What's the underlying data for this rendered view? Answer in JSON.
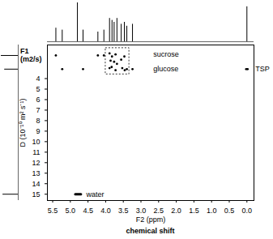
{
  "chart_data": {
    "type": "scatter",
    "x_label": "F2 (ppm)",
    "x_label_2": "chemical shift",
    "y_label": "D (10⁻¹⁰ m² s⁻¹)",
    "y_unit_label": [
      "F1",
      "(m2/s)"
    ],
    "xlim": [
      5.65,
      -0.2
    ],
    "xticks": [
      5.5,
      {
        "value": 5,
        "label": "5.0"
      },
      4.5,
      {
        "value": 4,
        "label": "4.0"
      },
      3.5,
      {
        "value": 3,
        "label": "3.0"
      },
      2.5,
      {
        "value": 2,
        "label": "2.0"
      },
      1.5,
      {
        "value": 1,
        "label": "1.0"
      },
      0.5,
      {
        "value": 0,
        "label": "0.0"
      }
    ],
    "ylim": [
      0.8,
      15.6
    ],
    "yticks": [
      4,
      5,
      6,
      7,
      8,
      9,
      10,
      11,
      12,
      13,
      14,
      15
    ],
    "series": [
      {
        "name": "sucrose",
        "color": "#000000",
        "marker": "circle",
        "label_x": 2.65,
        "label_y": 1.7,
        "x": [
          5.41,
          4.22,
          4.05,
          3.89,
          3.86,
          3.82,
          3.76,
          3.72,
          3.68,
          3.56,
          3.47
        ],
        "values": [
          1.8,
          1.8,
          1.8,
          1.6,
          2.3,
          1.9,
          2.4,
          1.7,
          2.6,
          2.2,
          1.9
        ]
      },
      {
        "name": "glucose",
        "color": "#000000",
        "marker": "circle",
        "label_x": 2.65,
        "label_y": 3.1,
        "x": [
          5.23,
          4.64,
          3.89,
          3.83,
          3.72,
          3.53,
          3.46,
          3.4,
          3.24
        ],
        "values": [
          3.1,
          3.1,
          3.0,
          2.9,
          3.2,
          3.0,
          3.2,
          3.1,
          3.1
        ]
      },
      {
        "name": "TSP",
        "color": "#000000",
        "marker": "circle",
        "label_x": -0.24,
        "label_y": 3.1,
        "x": [
          0.02,
          -0.02
        ],
        "values": [
          3.1,
          3.1
        ]
      },
      {
        "name": "water",
        "color": "#000000",
        "type": "line",
        "label_x": 4.55,
        "label_y": 15,
        "x": [
          4.86,
          4.7
        ],
        "values": [
          15,
          15
        ]
      }
    ],
    "highlight_box": {
      "x": [
        4.0,
        3.33
      ],
      "y": [
        1.1,
        3.6
      ]
    },
    "projection_f2": {
      "x": [
        5.41,
        5.23,
        4.8,
        4.64,
        4.22,
        4.05,
        3.89,
        3.82,
        3.76,
        3.68,
        3.56,
        3.47,
        3.4,
        3.24,
        0.0
      ],
      "heights": [
        0.35,
        0.3,
        1.0,
        0.3,
        0.25,
        0.3,
        0.6,
        0.55,
        0.5,
        0.6,
        0.45,
        0.5,
        0.4,
        0.45,
        0.9
      ]
    },
    "projection_f1": {
      "y": [
        1.8,
        3.1,
        15
      ],
      "heights": [
        1.0,
        0.8,
        0.9
      ]
    }
  }
}
